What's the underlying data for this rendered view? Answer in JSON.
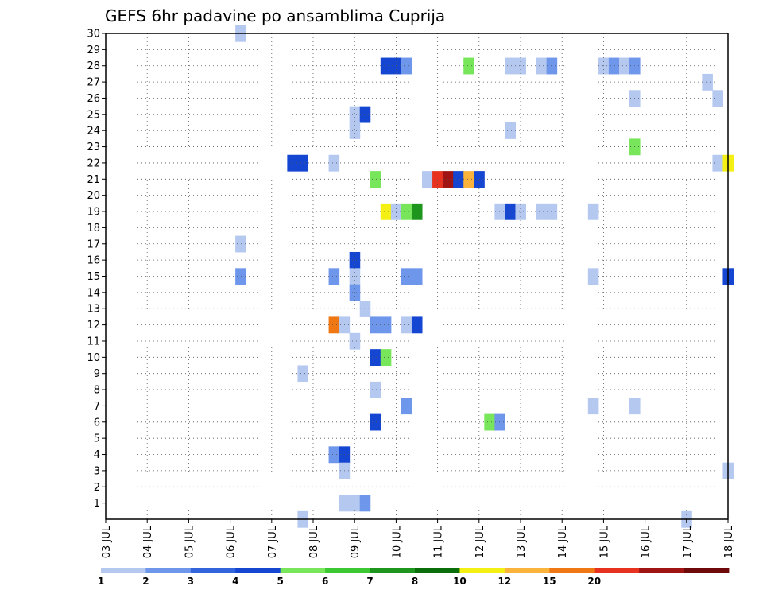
{
  "chart_data": {
    "type": "heatmap",
    "title": "GEFS 6hr padavine po ansamblima Cuprija",
    "xlabel": "",
    "ylabel": "",
    "x_ticks": [
      "03 JUL",
      "04 JUL",
      "05 JUL",
      "06 JUL",
      "07 JUL",
      "08 JUL",
      "09 JUL",
      "10 JUL",
      "11 JUL",
      "12 JUL",
      "13 JUL",
      "14 JUL",
      "15 JUL",
      "16 JUL",
      "17 JUL",
      "18 JUL"
    ],
    "y_ticks": [
      1,
      2,
      3,
      4,
      5,
      6,
      7,
      8,
      9,
      10,
      11,
      12,
      13,
      14,
      15,
      16,
      17,
      18,
      19,
      20,
      21,
      22,
      23,
      24,
      25,
      26,
      27,
      28,
      29,
      30
    ],
    "x_step_hours": 6,
    "x_range_days": [
      0,
      15
    ],
    "y_range": [
      0,
      30
    ],
    "grid": true,
    "colorbar": {
      "labels": [
        "1",
        "2",
        "3",
        "4",
        "5",
        "6",
        "7",
        "8",
        "10",
        "12",
        "15",
        "20"
      ],
      "colors": [
        "#b4c8f0",
        "#6e96eb",
        "#3264dc",
        "#1446d2",
        "#78e65a",
        "#3cc832",
        "#1e961e",
        "#0a6e0a",
        "#f5f014",
        "#fab43c",
        "#f07814",
        "#e6321e",
        "#a01414",
        "#6e0a0a"
      ]
    },
    "cells": [
      {
        "d": 3.25,
        "m": 30,
        "c": 0
      },
      {
        "d": 4.75,
        "m": 0,
        "c": 0
      },
      {
        "d": 14,
        "m": 0,
        "c": 0
      },
      {
        "d": 6.75,
        "m": 28,
        "c": 3
      },
      {
        "d": 7,
        "m": 28,
        "c": 3
      },
      {
        "d": 7.25,
        "m": 28,
        "c": 1
      },
      {
        "d": 8.75,
        "m": 28,
        "c": 4
      },
      {
        "d": 9.75,
        "m": 28,
        "c": 0
      },
      {
        "d": 10,
        "m": 28,
        "c": 0
      },
      {
        "d": 10.5,
        "m": 28,
        "c": 0
      },
      {
        "d": 10.75,
        "m": 28,
        "c": 1
      },
      {
        "d": 12,
        "m": 28,
        "c": 0
      },
      {
        "d": 12.25,
        "m": 28,
        "c": 1
      },
      {
        "d": 12.5,
        "m": 28,
        "c": 0
      },
      {
        "d": 12.75,
        "m": 28,
        "c": 1
      },
      {
        "d": 14.5,
        "m": 27,
        "c": 0
      },
      {
        "d": 12.75,
        "m": 26,
        "c": 0
      },
      {
        "d": 14.75,
        "m": 26,
        "c": 0
      },
      {
        "d": 6,
        "m": 25,
        "c": 0
      },
      {
        "d": 6.25,
        "m": 25,
        "c": 3
      },
      {
        "d": 6,
        "m": 24,
        "c": 0
      },
      {
        "d": 9.75,
        "m": 24,
        "c": 0
      },
      {
        "d": 12.75,
        "m": 23,
        "c": 4
      },
      {
        "d": 4.5,
        "m": 22,
        "c": 3
      },
      {
        "d": 4.75,
        "m": 22,
        "c": 3
      },
      {
        "d": 5.5,
        "m": 22,
        "c": 0
      },
      {
        "d": 14.75,
        "m": 22,
        "c": 0
      },
      {
        "d": 15,
        "m": 22,
        "c": 8
      },
      {
        "d": 6.5,
        "m": 21,
        "c": 4
      },
      {
        "d": 7.75,
        "m": 21,
        "c": 0
      },
      {
        "d": 8,
        "m": 21,
        "c": 11
      },
      {
        "d": 8.25,
        "m": 21,
        "c": 12
      },
      {
        "d": 8.5,
        "m": 21,
        "c": 3
      },
      {
        "d": 8.75,
        "m": 21,
        "c": 9
      },
      {
        "d": 9,
        "m": 21,
        "c": 3
      },
      {
        "d": 6.75,
        "m": 19,
        "c": 8
      },
      {
        "d": 7,
        "m": 19,
        "c": 0
      },
      {
        "d": 7.25,
        "m": 19,
        "c": 4
      },
      {
        "d": 7.5,
        "m": 19,
        "c": 6
      },
      {
        "d": 9.5,
        "m": 19,
        "c": 0
      },
      {
        "d": 9.75,
        "m": 19,
        "c": 3
      },
      {
        "d": 10,
        "m": 19,
        "c": 0
      },
      {
        "d": 10.5,
        "m": 19,
        "c": 0
      },
      {
        "d": 10.75,
        "m": 19,
        "c": 0
      },
      {
        "d": 11.75,
        "m": 19,
        "c": 0
      },
      {
        "d": 3.25,
        "m": 17,
        "c": 0
      },
      {
        "d": 6,
        "m": 16,
        "c": 3
      },
      {
        "d": 3.25,
        "m": 15,
        "c": 1
      },
      {
        "d": 5.5,
        "m": 15,
        "c": 1
      },
      {
        "d": 6,
        "m": 15,
        "c": 0
      },
      {
        "d": 7.25,
        "m": 15,
        "c": 1
      },
      {
        "d": 7.5,
        "m": 15,
        "c": 1
      },
      {
        "d": 11.75,
        "m": 15,
        "c": 0
      },
      {
        "d": 15,
        "m": 15,
        "c": 3
      },
      {
        "d": 6,
        "m": 14,
        "c": 1
      },
      {
        "d": 6.25,
        "m": 13,
        "c": 0
      },
      {
        "d": 5.5,
        "m": 12,
        "c": 10
      },
      {
        "d": 5.75,
        "m": 12,
        "c": 0
      },
      {
        "d": 6.5,
        "m": 12,
        "c": 1
      },
      {
        "d": 6.75,
        "m": 12,
        "c": 1
      },
      {
        "d": 7.25,
        "m": 12,
        "c": 0
      },
      {
        "d": 7.5,
        "m": 12,
        "c": 3
      },
      {
        "d": 6,
        "m": 11,
        "c": 0
      },
      {
        "d": 6.5,
        "m": 10,
        "c": 3
      },
      {
        "d": 6.75,
        "m": 10,
        "c": 4
      },
      {
        "d": 4.75,
        "m": 9,
        "c": 0
      },
      {
        "d": 6.5,
        "m": 8,
        "c": 0
      },
      {
        "d": 7.25,
        "m": 7,
        "c": 1
      },
      {
        "d": 11.75,
        "m": 7,
        "c": 0
      },
      {
        "d": 12.75,
        "m": 7,
        "c": 0
      },
      {
        "d": 6.5,
        "m": 6,
        "c": 3
      },
      {
        "d": 9.25,
        "m": 6,
        "c": 4
      },
      {
        "d": 9.5,
        "m": 6,
        "c": 1
      },
      {
        "d": 5.5,
        "m": 4,
        "c": 1
      },
      {
        "d": 5.75,
        "m": 4,
        "c": 3
      },
      {
        "d": 5.75,
        "m": 3,
        "c": 0
      },
      {
        "d": 15,
        "m": 3,
        "c": 0
      },
      {
        "d": 5.75,
        "m": 1,
        "c": 0
      },
      {
        "d": 6,
        "m": 1,
        "c": 0
      },
      {
        "d": 6.25,
        "m": 1,
        "c": 1
      }
    ]
  }
}
